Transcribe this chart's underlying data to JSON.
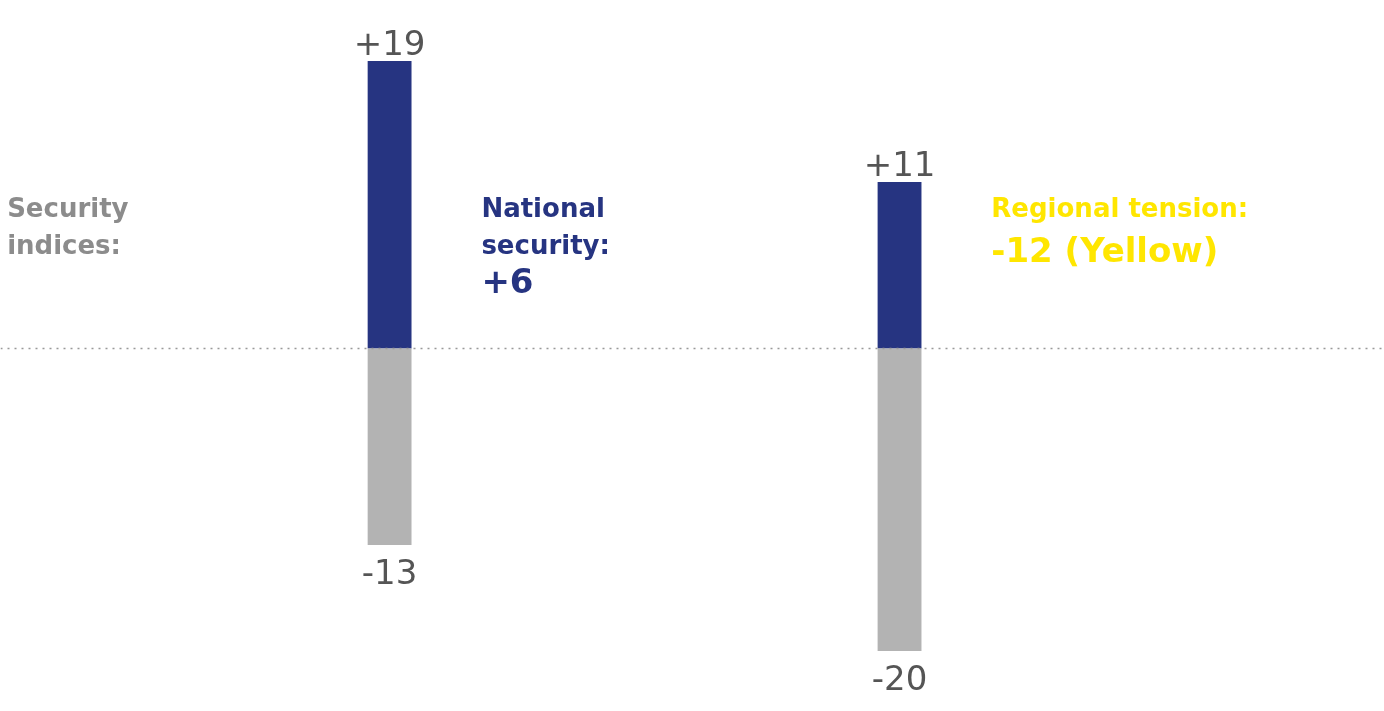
{
  "chart_data": {
    "type": "bar",
    "stacked": true,
    "categories": [
      null,
      null
    ],
    "series": [
      {
        "color": "#263481",
        "values": [
          19,
          11
        ],
        "value_labels": [
          "+19",
          "+11"
        ]
      },
      {
        "color": "#b3b3b3",
        "values": [
          -13,
          -20
        ],
        "value_labels": [
          "-13",
          "-20"
        ]
      }
    ],
    "ylim": [
      -24,
      23
    ],
    "tick_labels": false,
    "grid": false,
    "ref_lines": [
      {
        "axis": "y",
        "value": 0,
        "color": "#999999",
        "line_style": "dotted"
      }
    ],
    "annotations": [
      "Security\nindices:",
      "National\nsecurity:\n+6",
      "Regional tension:\n-12 (Yellow)"
    ]
  }
}
